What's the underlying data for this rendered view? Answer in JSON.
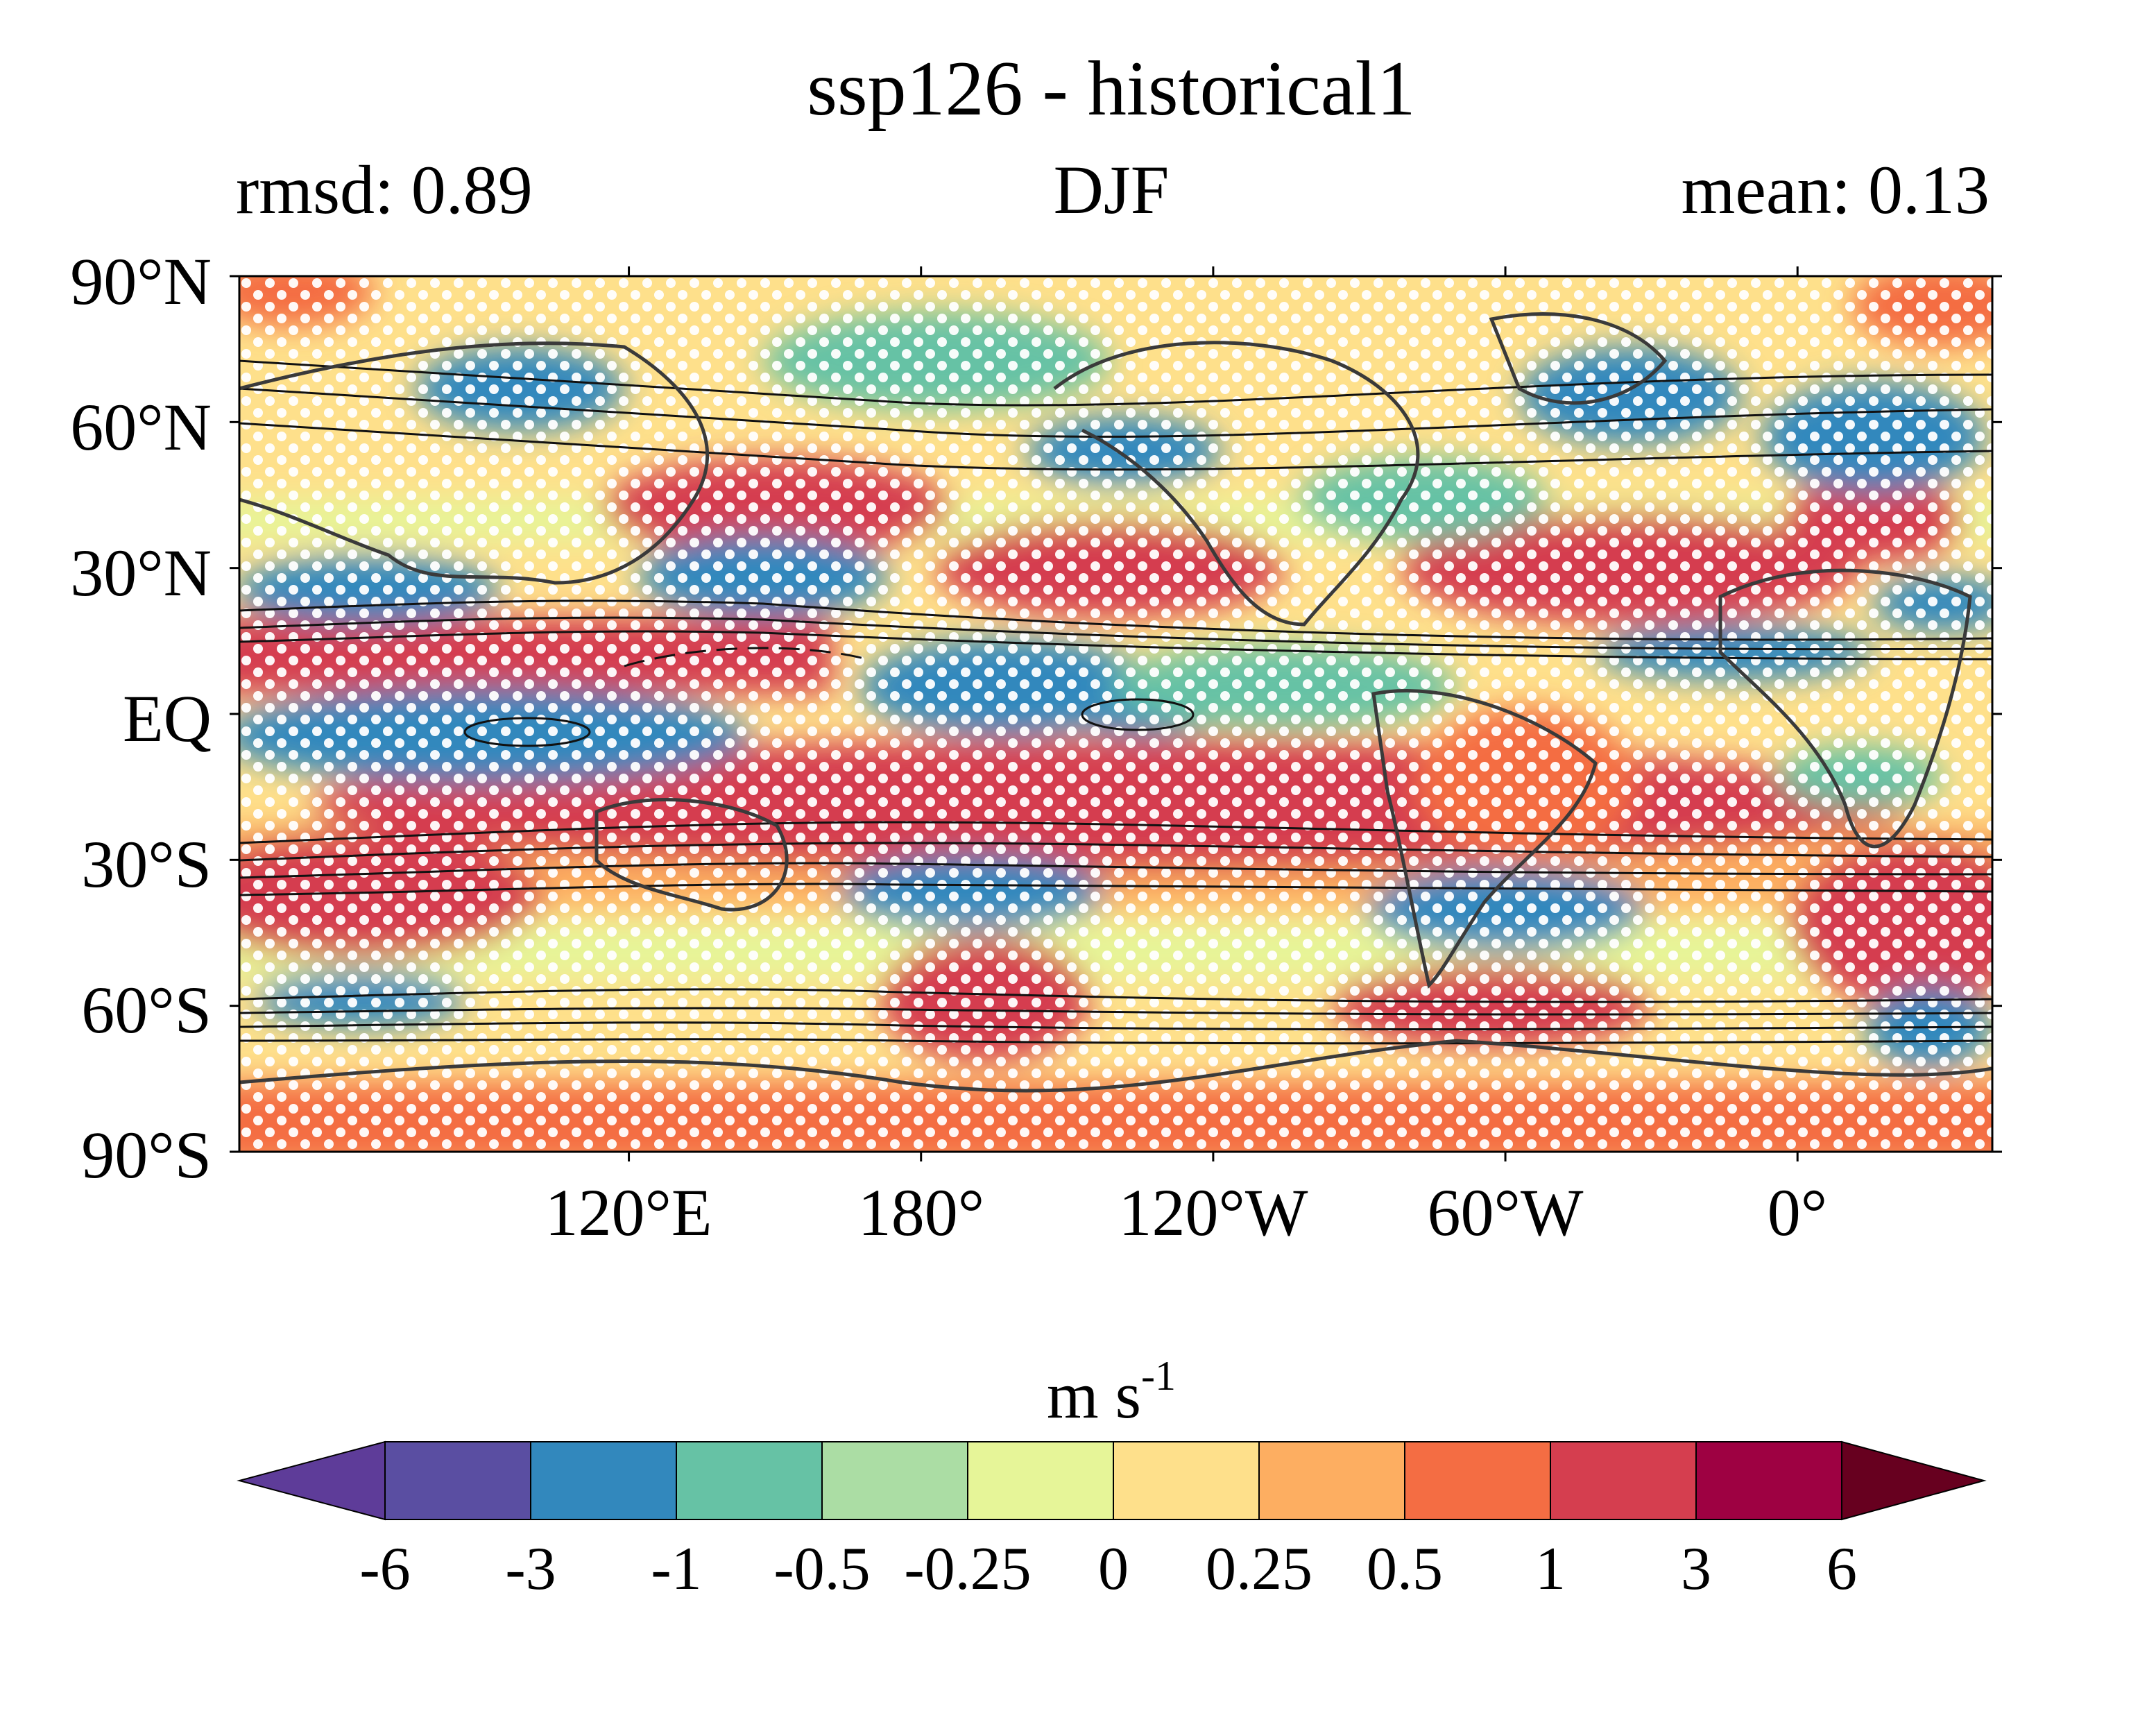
{
  "figure": {
    "title": "ssp126 - historical1",
    "season": "DJF",
    "rmsd_label": "rmsd: 0.89",
    "mean_label": "mean: 0.13"
  },
  "map": {
    "lat_ticks": [
      "90°N",
      "60°N",
      "30°N",
      "EQ",
      "30°S",
      "60°S",
      "90°S"
    ],
    "lat_values": [
      90,
      60,
      30,
      0,
      -30,
      -60,
      -90
    ],
    "lon_ticks": [
      "120°E",
      "180°",
      "120°W",
      "60°W",
      "0°"
    ],
    "lon_values": [
      120,
      180,
      240,
      300,
      360
    ],
    "lon_range": [
      40,
      400
    ],
    "lat_range": [
      -90,
      90
    ]
  },
  "colorbar": {
    "label_main": "m s",
    "label_sup": "-1",
    "tick_labels": [
      "-6",
      "-3",
      "-1",
      "-0.5",
      "-0.25",
      "0",
      "0.25",
      "0.5",
      "1",
      "3",
      "6"
    ],
    "colors": [
      "#5e3c99",
      "#5a4ea2",
      "#3288bd",
      "#66c2a5",
      "#abdda4",
      "#e6f598",
      "#fee08b",
      "#fdae61",
      "#f46d43",
      "#d53e4f",
      "#9e0142",
      "#67001f"
    ]
  }
}
